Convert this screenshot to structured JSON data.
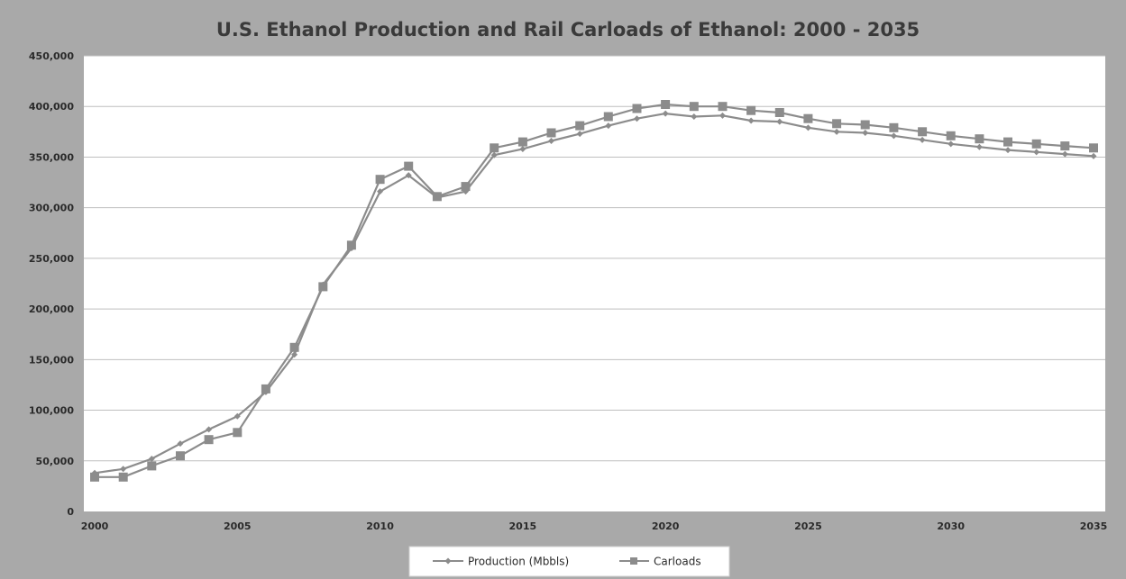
{
  "chart_data": {
    "type": "line",
    "title": "U.S. Ethanol Production and Rail Carloads of Ethanol: 2000 - 2035",
    "xlabel": "",
    "ylabel": "",
    "xlim": [
      2000,
      2035
    ],
    "ylim": [
      0,
      450000
    ],
    "x_ticks": [
      2000,
      2005,
      2010,
      2015,
      2020,
      2025,
      2030,
      2035
    ],
    "x_tick_labels": [
      "2000",
      "2005",
      "2010",
      "2015",
      "2020",
      "2025",
      "2030",
      "2035"
    ],
    "y_ticks": [
      0,
      50000,
      100000,
      150000,
      200000,
      250000,
      300000,
      350000,
      400000,
      450000
    ],
    "y_tick_labels": [
      "0",
      "50,000",
      "100,000",
      "150,000",
      "200,000",
      "250,000",
      "300,000",
      "350,000",
      "400,000",
      "450,000"
    ],
    "grid": true,
    "legend_position": "bottom",
    "x": [
      2000,
      2001,
      2002,
      2003,
      2004,
      2005,
      2006,
      2007,
      2008,
      2009,
      2010,
      2011,
      2012,
      2013,
      2014,
      2015,
      2016,
      2017,
      2018,
      2019,
      2020,
      2021,
      2022,
      2023,
      2024,
      2025,
      2026,
      2027,
      2028,
      2029,
      2030,
      2031,
      2032,
      2033,
      2034,
      2035
    ],
    "series": [
      {
        "name": "Production (Mbbls)",
        "marker": "diamond",
        "values": [
          38000,
          42000,
          52000,
          67000,
          81000,
          94000,
          118000,
          155000,
          224000,
          260000,
          316000,
          332000,
          310000,
          316000,
          352000,
          358000,
          366000,
          373000,
          381000,
          388000,
          393000,
          390000,
          391000,
          386000,
          385000,
          379000,
          375000,
          374000,
          371000,
          367000,
          363000,
          360000,
          357000,
          355000,
          353000,
          351000
        ]
      },
      {
        "name": "Carloads",
        "marker": "square",
        "values": [
          34000,
          34000,
          45000,
          55000,
          71000,
          78000,
          121000,
          162000,
          222000,
          263000,
          328000,
          341000,
          311000,
          321000,
          359000,
          365000,
          374000,
          381000,
          390000,
          398000,
          402000,
          400000,
          400000,
          396000,
          394000,
          388000,
          383000,
          382000,
          379000,
          375000,
          371000,
          368000,
          365000,
          363000,
          361000,
          359000
        ]
      }
    ],
    "colors": {
      "background": "#a9a9a9",
      "plot_area": "#ffffff",
      "grid": "#bfbfbf",
      "series": "#8c8c8c",
      "title_text": "#3a3a3a",
      "tick_text": "#2a2a2a"
    }
  }
}
